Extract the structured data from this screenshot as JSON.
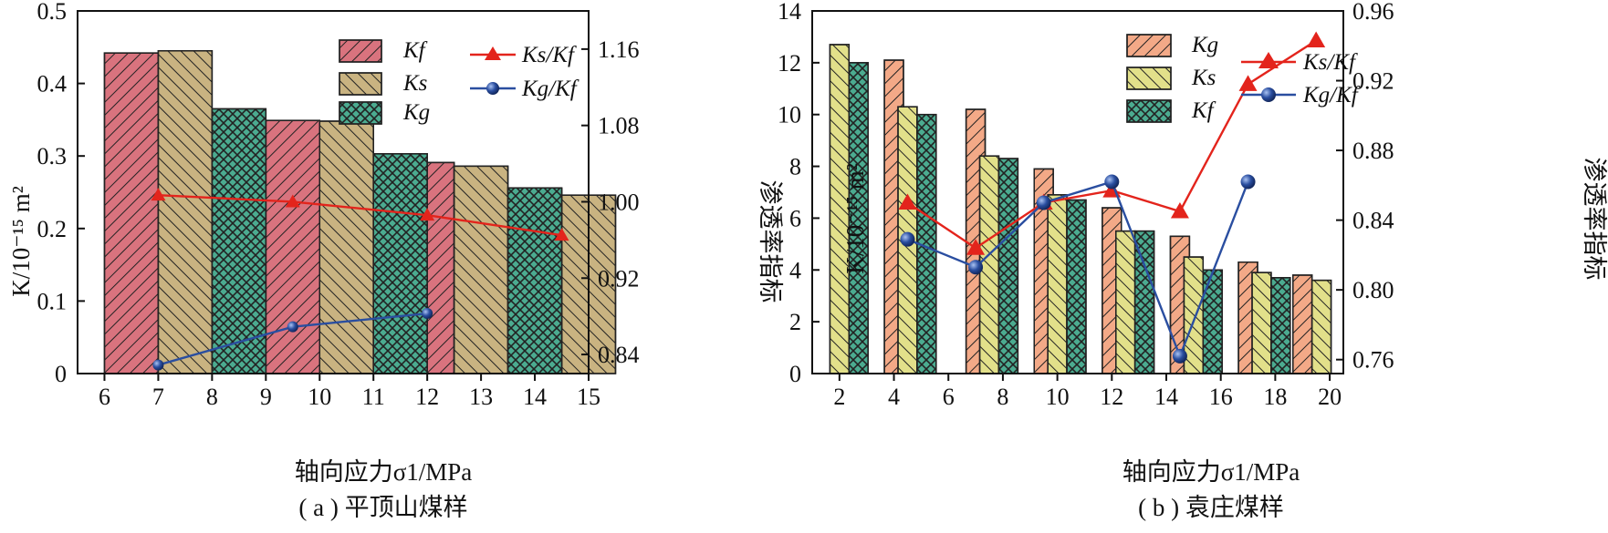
{
  "panels": [
    {
      "caption": "( a ) 平顶山煤样",
      "xlabel": "轴向应力σ1/MPa",
      "ylabel_left": "K/10⁻¹⁵ m²",
      "ylabel_right": "渗透率指标",
      "legend": {
        "bars": [
          "Kf",
          "Ks",
          "Kg"
        ],
        "lines": [
          "Ks/Kf",
          "Kg/Kf"
        ]
      }
    },
    {
      "caption": "( b ) 袁庄煤样",
      "xlabel": "轴向应力σ1/MPa",
      "ylabel_left": "K/10⁻¹⁵ m²",
      "ylabel_right": "渗透率指标",
      "legend": {
        "bars": [
          "Kg",
          "Ks",
          "Kf"
        ],
        "lines": [
          "Ks/Kf",
          "Kg/Kf"
        ]
      }
    }
  ],
  "colors": {
    "kf_fill": "#d9737e",
    "ks_fill": "#c9b381",
    "kg_fill": "#4bab90",
    "kf_fill_b": "#f3a987",
    "ks_fill_b": "#e2e08a",
    "kg_fill_b": "#4bab90",
    "red_line": "#e3241c",
    "blue_line": "#2a4ea0"
  },
  "chart_data": [
    {
      "type": "bar",
      "title": "( a ) 平顶山煤样",
      "xlabel": "轴向应力σ1/MPa",
      "ylabel": "K/10⁻¹⁵ m²",
      "y2label": "渗透率指标",
      "xlim": [
        5.5,
        15
      ],
      "ylim": [
        0,
        0.5
      ],
      "y2lim": [
        0.82,
        1.2
      ],
      "xticks": [
        6,
        7,
        8,
        9,
        10,
        11,
        12,
        13,
        14,
        15
      ],
      "yticks": [
        0,
        0.1,
        0.2,
        0.3,
        0.4,
        0.5
      ],
      "y2ticks": [
        0.84,
        0.92,
        1.0,
        1.08,
        1.16
      ],
      "bar_width": 1,
      "bar_series": [
        {
          "name": "Kf",
          "x": [
            6.5,
            9.5,
            12.0,
            14.0
          ],
          "values": [
            0.442,
            0.349,
            0.291,
            0.255
          ]
        },
        {
          "name": "Ks",
          "x": [
            7.5,
            10.5,
            13.0,
            15.0
          ],
          "values": [
            0.445,
            0.348,
            0.286,
            0.246
          ]
        },
        {
          "name": "Kg",
          "x": [
            8.5,
            11.5,
            14.0
          ],
          "values": [
            0.365,
            0.303,
            0.256
          ]
        }
      ],
      "line_series": [
        {
          "name": "Ks/Kf",
          "axis": "right",
          "marker": "triangle",
          "x": [
            7,
            9.5,
            12,
            14.5
          ],
          "values": [
            1.007,
            1.0,
            0.986,
            0.965
          ]
        },
        {
          "name": "Kg/Kf",
          "axis": "right",
          "marker": "circle",
          "x": [
            7,
            9.5,
            12
          ],
          "values": [
            0.829,
            0.869,
            0.883
          ]
        }
      ],
      "legend_position": "top-right"
    },
    {
      "type": "bar",
      "title": "( b ) 袁庄煤样",
      "xlabel": "轴向应力σ1/MPa",
      "ylabel": "K/10⁻¹⁵ m²",
      "y2label": "渗透率指标",
      "xlim": [
        1,
        20.5
      ],
      "ylim": [
        0,
        14
      ],
      "y2lim": [
        0.752,
        0.96
      ],
      "xticks": [
        2,
        4,
        6,
        8,
        10,
        12,
        14,
        16,
        18,
        20
      ],
      "yticks": [
        0,
        2,
        4,
        6,
        8,
        10,
        12,
        14
      ],
      "y2ticks": [
        0.76,
        0.8,
        0.84,
        0.88,
        0.92,
        0.96
      ],
      "bar_width": 0.7,
      "bar_series": [
        {
          "name": "Kg",
          "x": [
            4.0,
            7.0,
            9.5,
            12.0,
            14.5,
            17.0,
            19.0
          ],
          "values": [
            12.1,
            10.2,
            7.9,
            6.4,
            5.3,
            4.3,
            3.8
          ]
        },
        {
          "name": "Ks",
          "x": [
            2.0,
            4.5,
            7.5,
            10.0,
            12.5,
            15.0,
            17.5,
            19.7
          ],
          "values": [
            12.7,
            10.3,
            8.4,
            6.9,
            5.5,
            4.5,
            3.9,
            3.6
          ]
        },
        {
          "name": "Kf",
          "x": [
            2.7,
            5.2,
            8.2,
            10.7,
            13.2,
            15.7,
            18.2
          ],
          "values": [
            12.0,
            10.0,
            8.3,
            6.7,
            5.5,
            4.0,
            3.7
          ]
        }
      ],
      "line_series": [
        {
          "name": "Ks/Kf",
          "axis": "right",
          "marker": "triangle",
          "x": [
            4.5,
            7.0,
            9.5,
            12.0,
            14.5,
            17.0,
            19.5
          ],
          "values": [
            0.85,
            0.824,
            0.85,
            0.857,
            0.845,
            0.918,
            0.943
          ]
        },
        {
          "name": "Kg/Kf",
          "axis": "right",
          "marker": "circle",
          "x": [
            4.5,
            7.0,
            9.5,
            12.0,
            14.5,
            17.0
          ],
          "values": [
            0.829,
            0.813,
            0.85,
            0.862,
            0.762,
            0.862
          ]
        }
      ],
      "legend_position": "top-right"
    }
  ]
}
